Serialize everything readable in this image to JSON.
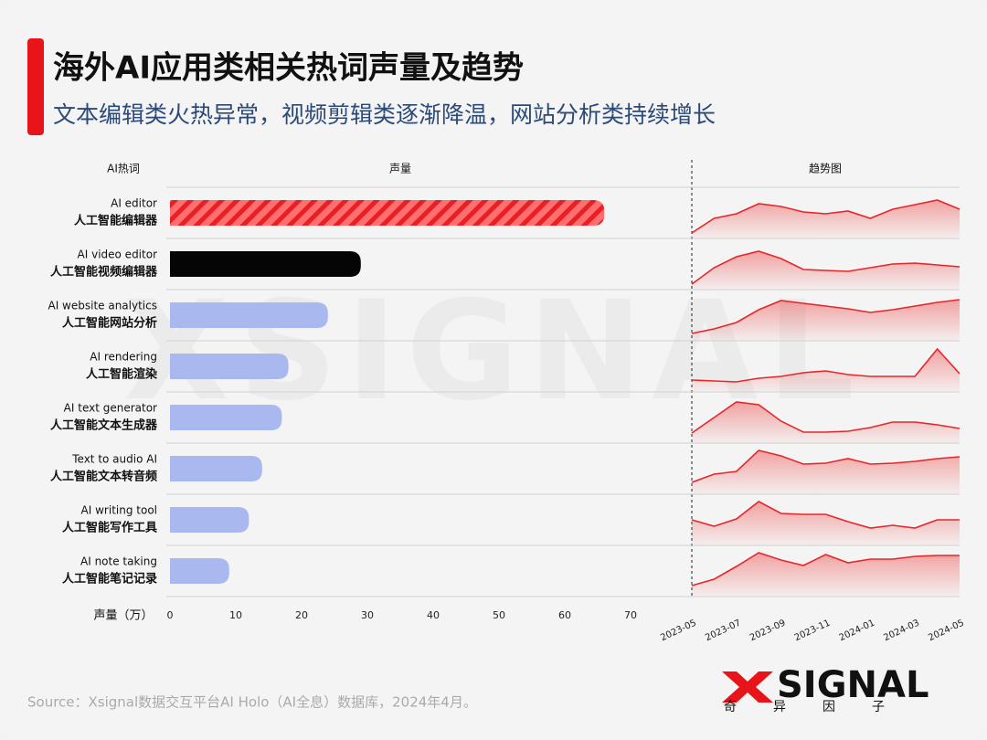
{
  "chart_data": {
    "type": "bar",
    "title": "海外AI应用类相关热词声量及趋势",
    "subtitle": "文本编辑类火热异常，视频剪辑类逐渐降温，网站分析类持续增长",
    "headers": [
      "AI热词",
      "声量",
      "趋势图"
    ],
    "categories": [
      "AI editor",
      "AI video editor",
      "AI website analytics",
      "AI rendering",
      "AI text generator",
      "Text to audio AI",
      "AI writing tool",
      "AI note taking"
    ],
    "categories_zh": [
      "人工智能编辑器",
      "人工智能视频编辑器",
      "人工智能网站分析",
      "人工智能渲染",
      "人工智能文本生成器",
      "人工智能文本转音频",
      "人工智能写作工具",
      "人工智能笔记记录"
    ],
    "values": [
      66,
      29,
      24,
      18,
      17,
      14,
      12,
      9
    ],
    "colors": [
      "#f03b3b",
      "#050505",
      "#a9b9ef",
      "#a9b9ef",
      "#a9b9ef",
      "#a9b9ef",
      "#a9b9ef",
      "#a9b9ef"
    ],
    "hatched": [
      true,
      false,
      false,
      false,
      false,
      false,
      false,
      false
    ],
    "xlabel": "声量（万）",
    "xlim": [
      0,
      70
    ],
    "xticks": [
      0,
      10,
      20,
      30,
      40,
      50,
      60,
      70
    ],
    "trend": {
      "x": [
        "2023-05",
        "2023-06",
        "2023-07",
        "2023-08",
        "2023-09",
        "2023-10",
        "2023-11",
        "2023-12",
        "2024-01",
        "2024-02",
        "2024-03",
        "2024-04",
        "2024-05"
      ],
      "xticks": [
        "2023-05",
        "2023-07",
        "2023-09",
        "2023-11",
        "2024-01",
        "2024-03",
        "2024-05"
      ],
      "ylim": [
        0,
        50
      ],
      "color": "#e8262a",
      "series": [
        {
          "values": [
            4,
            20,
            25,
            36,
            33,
            27,
            25,
            28,
            20,
            30,
            35,
            40,
            30
          ]
        },
        {
          "values": [
            4,
            22,
            34,
            40,
            32,
            20,
            19,
            18,
            22,
            26,
            27,
            25,
            23
          ]
        },
        {
          "values": [
            6,
            11,
            18,
            32,
            42,
            39,
            36,
            33,
            29,
            32,
            36,
            40,
            43
          ]
        },
        {
          "values": [
            11,
            10,
            9,
            13,
            15,
            19,
            21,
            17,
            15,
            15,
            15,
            45,
            18
          ]
        },
        {
          "values": [
            9,
            26,
            43,
            40,
            22,
            10,
            10,
            11,
            15,
            21,
            21,
            18,
            14
          ]
        },
        {
          "values": [
            11,
            20,
            23,
            46,
            40,
            31,
            32,
            37,
            31,
            32,
            34,
            37,
            39
          ]
        },
        {
          "values": [
            26,
            19,
            27,
            46,
            33,
            32,
            32,
            24,
            17,
            20,
            17,
            26,
            26
          ]
        },
        {
          "values": [
            10,
            17,
            31,
            46,
            38,
            32,
            44,
            35,
            39,
            39,
            42,
            43,
            43
          ]
        }
      ]
    },
    "watermark": "XSIGNAL",
    "source": "Source：Xsignal数据交互平台AI Holo（AI全息）数据库，2024年4月。",
    "logo": {
      "text": "SIGNAL",
      "tagline": "奇异因子"
    }
  }
}
